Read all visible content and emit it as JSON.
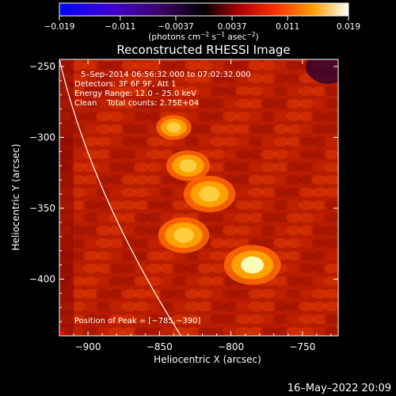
{
  "chart_data": {
    "type": "heatmap",
    "title": "Reconstructed RHESSI Image",
    "xlabel": "Heliocentric X (arcsec)",
    "ylabel": "Heliocentric Y (arcsec)",
    "xlim": [
      -920,
      -725
    ],
    "ylim": [
      -440,
      -245
    ],
    "x_ticks": [
      -900,
      -850,
      -800,
      -750
    ],
    "x_tick_labels": [
      "−900",
      "−850",
      "−800",
      "−750"
    ],
    "y_ticks": [
      -250,
      -300,
      -350,
      -400
    ],
    "y_tick_labels": [
      "−250",
      "−300",
      "−350",
      "−400"
    ],
    "colorbar": {
      "range": [
        -0.019,
        0.019
      ],
      "ticks": [
        -0.019,
        -0.011,
        -0.0037,
        0.0037,
        0.011,
        0.019
      ],
      "tick_labels": [
        "−0.019",
        "−0.011",
        "−0.0037",
        "0.0037",
        "0.011",
        "0.019"
      ],
      "unit_parts": [
        "(photons cm",
        "−2",
        " s",
        "−1",
        " asec",
        "−2",
        ")"
      ]
    },
    "annotations": {
      "time": "5–Sep–2014 06:56:32.000 to 07:02:32.000",
      "detectors": "Detectors: 3F 6F 9F, Att 1",
      "energy": "Energy Range: 12.0 – 25.0 keV",
      "clean": "Clean    Total counts: 2.75E+04",
      "peak": "Position of Peak = [−785,−390]"
    },
    "peak_position": [
      -785,
      -390
    ],
    "sources": [
      {
        "x": -785,
        "y": -390,
        "level": 1.0
      },
      {
        "x": -815,
        "y": -340,
        "level": 0.85
      },
      {
        "x": -833,
        "y": -369,
        "level": 0.82
      },
      {
        "x": -830,
        "y": -320,
        "level": 0.6
      },
      {
        "x": -840,
        "y": -293,
        "level": 0.35
      }
    ],
    "limb_x_at_y": [
      [
        -920,
        -245
      ],
      [
        -835,
        -440
      ]
    ],
    "footer": "16–May–2022 20:09",
    "colormap": [
      "#000000",
      "#2a00a0",
      "#7800b4",
      "#c8002a",
      "#ff1e00",
      "#ff7a00",
      "#ffc400",
      "#ffff70",
      "#ffffff"
    ]
  }
}
